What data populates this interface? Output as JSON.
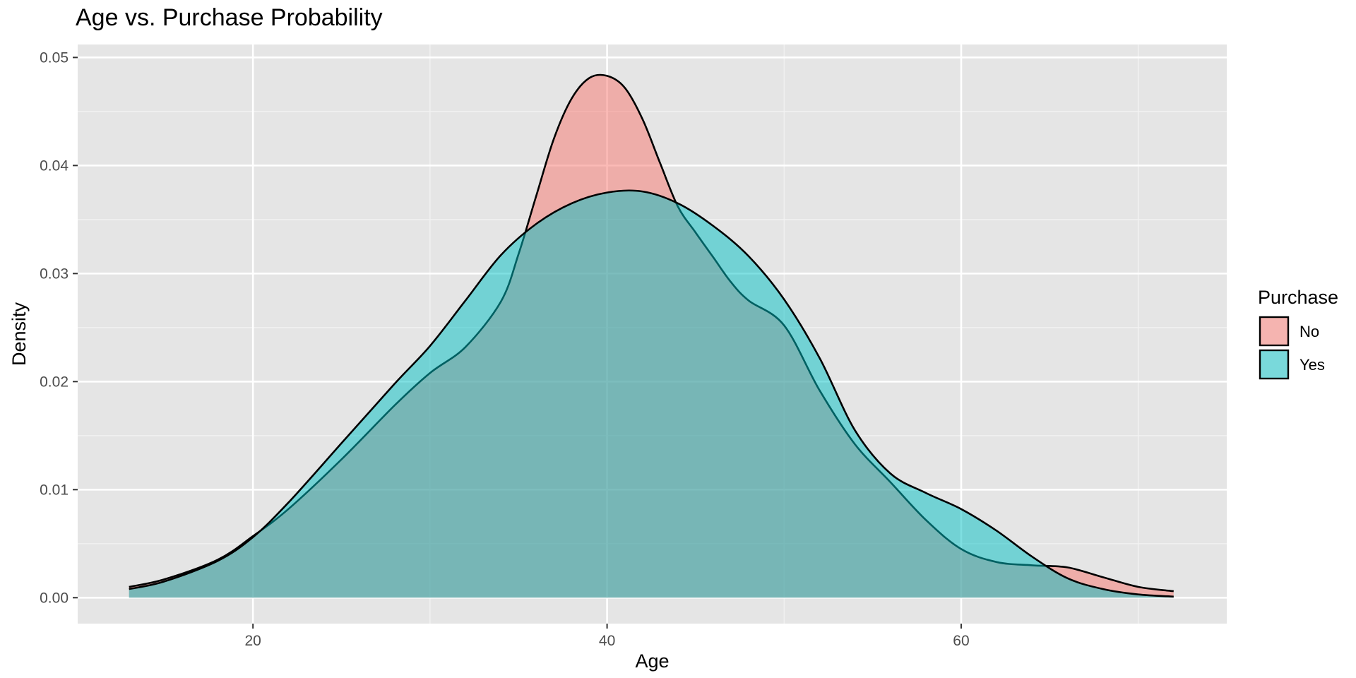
{
  "chart_data": {
    "type": "area",
    "title": "Age vs. Purchase Probability",
    "xlabel": "Age",
    "ylabel": "Density",
    "xlim": [
      10.1,
      75.0
    ],
    "ylim": [
      -0.0024,
      0.0512
    ],
    "x_ticks": [
      20,
      40,
      60
    ],
    "x_tick_labels": [
      "20",
      "40",
      "60"
    ],
    "y_ticks": [
      0.0,
      0.01,
      0.02,
      0.03,
      0.04,
      0.05
    ],
    "y_tick_labels": [
      "0.00",
      "0.01",
      "0.02",
      "0.03",
      "0.04",
      "0.05"
    ],
    "grid": true,
    "legend_title": "Purchase",
    "legend_position": "right",
    "series": [
      {
        "name": "No",
        "fill": "#F8766D",
        "x": [
          13,
          15,
          18,
          20,
          22,
          25,
          28,
          30,
          32,
          34,
          35,
          36,
          37,
          38,
          39,
          40,
          41,
          42,
          43,
          44,
          45,
          46,
          47,
          48,
          50,
          52,
          54,
          56,
          58,
          60,
          62,
          64,
          66,
          68,
          70,
          72
        ],
        "y": [
          0.001,
          0.0017,
          0.0035,
          0.0057,
          0.0082,
          0.0128,
          0.0178,
          0.0208,
          0.0232,
          0.0274,
          0.0318,
          0.0372,
          0.0425,
          0.0462,
          0.0481,
          0.0483,
          0.0472,
          0.0443,
          0.0402,
          0.0362,
          0.0338,
          0.0315,
          0.0292,
          0.0275,
          0.0252,
          0.0192,
          0.0142,
          0.0107,
          0.0072,
          0.0045,
          0.0033,
          0.003,
          0.0028,
          0.0019,
          0.001,
          0.0006
        ]
      },
      {
        "name": "Yes",
        "fill": "#00BFC4",
        "x": [
          13,
          15,
          18,
          20,
          22,
          25,
          28,
          30,
          32,
          34,
          36,
          38,
          40,
          42,
          44,
          46,
          48,
          50,
          52,
          54,
          56,
          58,
          60,
          62,
          64,
          66,
          68,
          70,
          72
        ],
        "y": [
          0.0008,
          0.0015,
          0.0034,
          0.0056,
          0.0088,
          0.0143,
          0.0198,
          0.0233,
          0.0275,
          0.0317,
          0.0346,
          0.0365,
          0.0375,
          0.0376,
          0.0365,
          0.0344,
          0.0316,
          0.0276,
          0.0222,
          0.0155,
          0.0115,
          0.0097,
          0.0082,
          0.0062,
          0.0038,
          0.0018,
          0.0008,
          0.0003,
          0.0001
        ]
      }
    ]
  }
}
